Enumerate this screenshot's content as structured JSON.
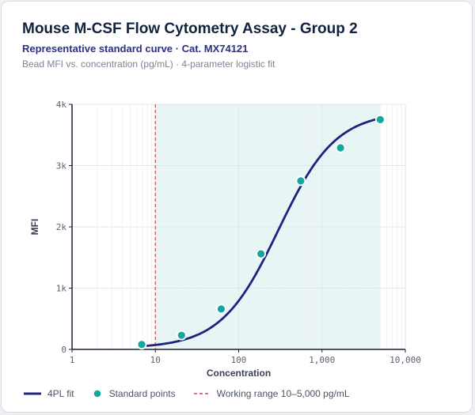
{
  "header": {
    "title": "Mouse M-CSF Flow Cytometry Assay - Group 2",
    "subtitle": "Representative standard curve · Cat. MX74121",
    "caption": "Bead MFI vs. concentration (pg/mL) · 4-parameter logistic fit"
  },
  "colors": {
    "curve": "#1f237d",
    "points": "#13a89e",
    "working_range_line": "#d9424e",
    "working_range_fill": "#e7f6f5"
  },
  "chart_data": {
    "type": "scatter",
    "title": "Mouse M-CSF Flow Cytometry Assay - Group 2",
    "xlabel": "Concentration",
    "ylabel": "MFI",
    "x_scale": "log",
    "xlim": [
      1,
      10000
    ],
    "ylim": [
      0,
      4000
    ],
    "x_ticks": [
      1,
      10,
      100,
      1000,
      10000
    ],
    "x_tick_labels": [
      "1",
      "10",
      "100",
      "1,000",
      "10,000"
    ],
    "y_ticks": [
      0,
      1000,
      2000,
      3000,
      4000
    ],
    "y_tick_labels": [
      "0",
      "1k",
      "2k",
      "3k",
      "4k"
    ],
    "grid": true,
    "legend_position": "bottom",
    "series": [
      {
        "name": "4PL fit",
        "kind": "line",
        "params": {
          "A": 20,
          "D": 3880,
          "C": 300,
          "B": 1.26
        },
        "x_range": [
          6.5,
          5000
        ]
      },
      {
        "name": "Standard points",
        "kind": "scatter",
        "x": [
          6.86,
          20.6,
          61.7,
          185,
          556,
          1667,
          5000
        ],
        "y": [
          80,
          230,
          660,
          1560,
          2750,
          3290,
          3750
        ]
      }
    ],
    "annotations": [
      {
        "type": "shaded_range",
        "x": [
          10,
          5000
        ],
        "label": "Working range 10–5,000 pg/mL"
      },
      {
        "type": "vline",
        "x": 10,
        "style": "dashed"
      }
    ]
  },
  "legend": {
    "fit_label": "4PL fit",
    "points_label": "Standard points",
    "range_label": "Working range 10–5,000 pg/mL"
  }
}
